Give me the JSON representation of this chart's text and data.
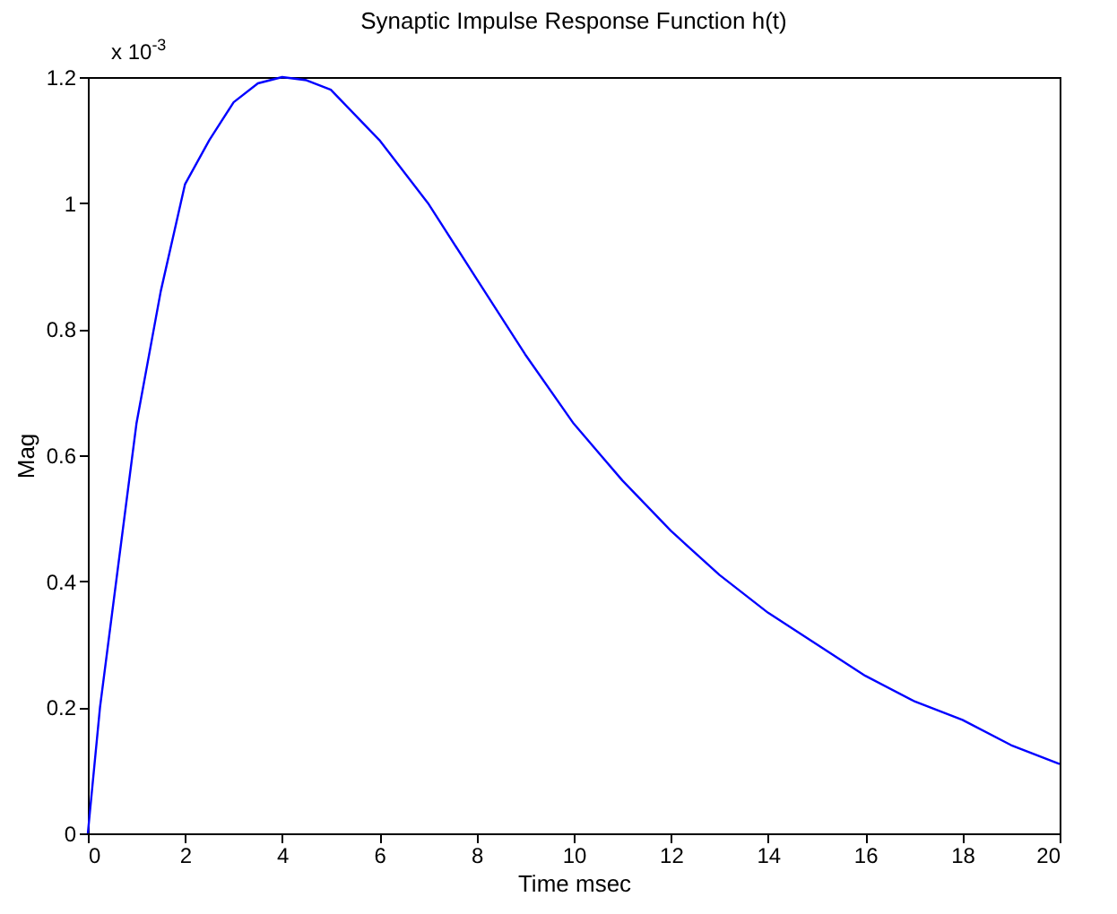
{
  "chart_data": {
    "type": "line",
    "title": "Synaptic Impulse Response Function h(t)",
    "xlabel": "Time msec",
    "ylabel": "Mag",
    "annotations": [
      "x 10$^{-3}$"
    ],
    "x": [
      0,
      0.25,
      0.5,
      1,
      1.5,
      2,
      2.5,
      3,
      3.5,
      4,
      4.5,
      5,
      6,
      7,
      8,
      9,
      10,
      11,
      12,
      13,
      14,
      15,
      16,
      17,
      18,
      19,
      20
    ],
    "series": [
      {
        "color": "#0000ff",
        "values": [
          0,
          0.2,
          0.35,
          0.65,
          0.86,
          1.03,
          1.1,
          1.16,
          1.19,
          1.2,
          1.195,
          1.18,
          1.1,
          1.0,
          0.88,
          0.76,
          0.65,
          0.56,
          0.48,
          0.41,
          0.35,
          0.3,
          0.25,
          0.21,
          0.18,
          0.14,
          0.11
        ]
      }
    ],
    "xlim": [
      0,
      20
    ],
    "xticks": [
      0,
      2,
      4,
      6,
      8,
      10,
      12,
      14,
      16,
      18,
      20
    ],
    "ylim": [
      0,
      1.2
    ],
    "yticks": [
      0,
      0.2,
      0.4,
      0.6,
      0.8,
      1,
      1.2
    ],
    "grid": false,
    "marker": "none",
    "line_style": "solid"
  }
}
